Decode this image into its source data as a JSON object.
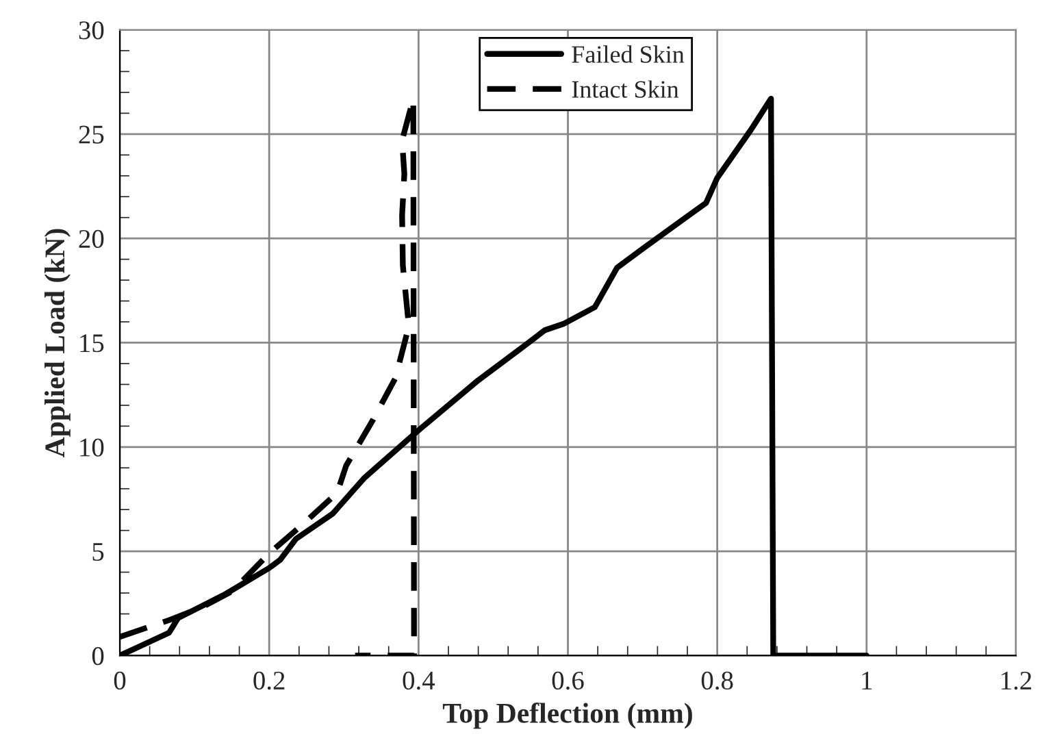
{
  "chart_data": {
    "type": "line",
    "xlabel": "Top Deflection (mm)",
    "ylabel": "Applied Load (kN)",
    "xlim": [
      0,
      1.2
    ],
    "xticks": [
      0,
      0.2,
      0.4,
      0.6,
      0.8,
      1,
      1.2
    ],
    "ylim": [
      0,
      30
    ],
    "yticks": [
      0,
      5,
      10,
      15,
      20,
      25,
      30
    ],
    "grid": true,
    "legend": "top",
    "marker": "none",
    "series": [
      {
        "name": "Failed Skin",
        "color": "#000000",
        "line_style": "solid",
        "x": [
          0,
          0.03,
          0.066,
          0.078,
          0.139,
          0.2,
          0.215,
          0.236,
          0.285,
          0.327,
          0.4,
          0.48,
          0.551,
          0.569,
          0.594,
          0.636,
          0.666,
          0.7,
          0.75,
          0.785,
          0.8,
          0.845,
          0.872,
          0.875,
          1.0
        ],
        "values": [
          0,
          0.5,
          1.1,
          1.8,
          2.9,
          4.2,
          4.6,
          5.6,
          6.8,
          8.5,
          10.8,
          13.2,
          15.1,
          15.6,
          15.9,
          16.7,
          18.6,
          19.5,
          20.8,
          21.7,
          22.9,
          25.2,
          26.7,
          0,
          0
        ]
      },
      {
        "name": "Intact Skin",
        "color": "#000000",
        "line_style": "dashed",
        "x": [
          0,
          0.066,
          0.109,
          0.151,
          0.2,
          0.242,
          0.291,
          0.303,
          0.339,
          0.369,
          0.382,
          0.387,
          0.379,
          0.378,
          0.381,
          0.378,
          0.393,
          0.394,
          0.315
        ],
        "values": [
          0.9,
          1.7,
          2.3,
          3.1,
          4.9,
          6.2,
          7.8,
          9.1,
          11.3,
          13.3,
          15.1,
          15.8,
          18.7,
          21.1,
          23.1,
          24.7,
          26.7,
          0,
          0
        ]
      }
    ]
  }
}
